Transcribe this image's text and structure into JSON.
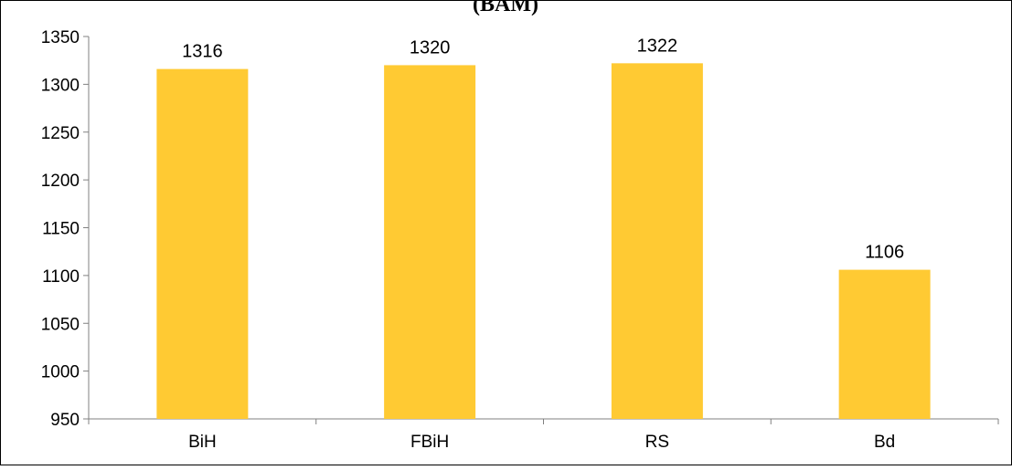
{
  "chart_data": {
    "type": "bar",
    "title": "(BAM)",
    "categories": [
      "BiH",
      "FBiH",
      "RS",
      "Bd"
    ],
    "values": [
      1316,
      1320,
      1322,
      1106
    ],
    "data_labels": [
      "1316",
      "1320",
      "1322",
      "1106"
    ],
    "ylim": [
      950,
      1350
    ],
    "yticks": [
      950,
      1000,
      1050,
      1100,
      1150,
      1200,
      1250,
      1300,
      1350
    ],
    "grid": false,
    "bar_color": "#FFCA33"
  }
}
